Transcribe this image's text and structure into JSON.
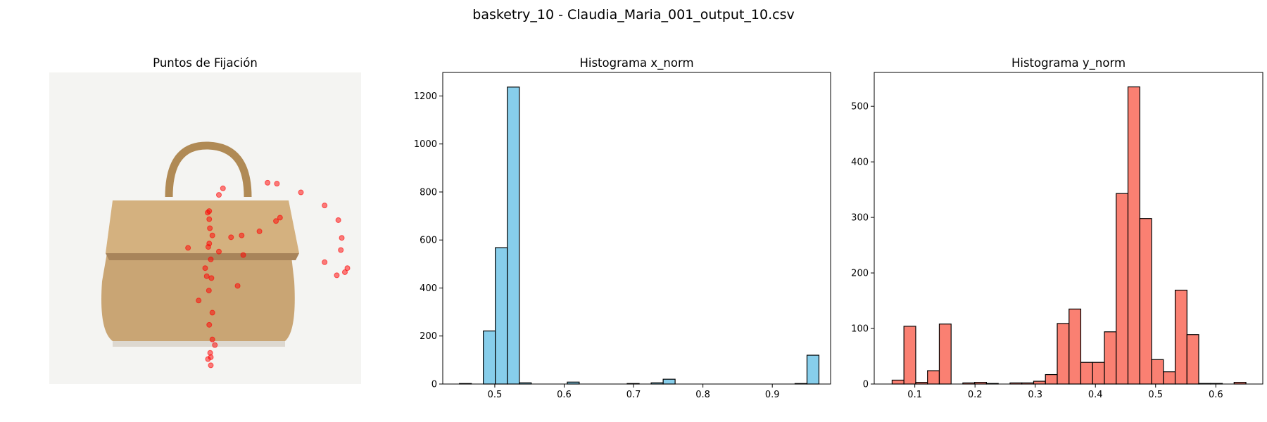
{
  "title": "basketry_10 - Claudia_Maria_001_output_10.csv",
  "chart_data": [
    {
      "type": "scatter",
      "title": "Puntos de Fijación",
      "color": "#ff0000",
      "x": [
        0.513,
        0.513,
        0.513,
        0.508,
        0.518,
        0.5,
        0.523,
        0.513,
        0.523,
        0.531,
        0.518,
        0.518,
        0.523,
        0.479,
        0.505,
        0.544,
        0.7,
        0.73,
        0.807,
        0.883,
        0.927,
        0.938,
        0.935,
        0.956,
        0.948,
        0.922,
        0.883,
        0.74,
        0.727,
        0.674,
        0.617,
        0.583,
        0.604,
        0.445,
        0.557,
        0.544,
        0.622,
        0.515,
        0.51,
        0.52,
        0.512,
        0.516,
        0.509
      ],
      "y": [
        0.445,
        0.471,
        0.549,
        0.45,
        0.6,
        0.628,
        0.523,
        0.81,
        0.771,
        0.875,
        0.914,
        0.94,
        0.857,
        0.732,
        0.654,
        0.575,
        0.354,
        0.357,
        0.385,
        0.427,
        0.474,
        0.531,
        0.57,
        0.628,
        0.641,
        0.651,
        0.609,
        0.466,
        0.477,
        0.51,
        0.523,
        0.529,
        0.685,
        0.563,
        0.372,
        0.393,
        0.586,
        0.5,
        0.56,
        0.66,
        0.7,
        0.9,
        0.92
      ]
    },
    {
      "type": "histogram",
      "title": "Histograma x_norm",
      "color": "#87ceeb",
      "bins": [
        0.449,
        0.4663,
        0.4835,
        0.5008,
        0.5181,
        0.5354,
        0.5526,
        0.5699,
        0.5872,
        0.6045,
        0.6217,
        0.639,
        0.6563,
        0.6736,
        0.6908,
        0.7081,
        0.7254,
        0.7427,
        0.7599,
        0.7772,
        0.7945,
        0.8118,
        0.829,
        0.8463,
        0.8636,
        0.8809,
        0.8981,
        0.9154,
        0.9327,
        0.95,
        0.9672
      ],
      "values": [
        2,
        0,
        221,
        568,
        1237,
        5,
        0,
        0,
        0,
        8,
        0,
        0,
        0,
        0,
        2,
        0,
        5,
        20,
        0,
        0,
        0,
        0,
        0,
        0,
        0,
        0,
        0,
        0,
        2,
        120
      ],
      "xlim": [
        0.425,
        0.984
      ],
      "ylim": [
        0,
        1298
      ],
      "xticks": [
        0.5,
        0.6,
        0.7,
        0.8,
        0.9
      ],
      "yticks": [
        0,
        200,
        400,
        600,
        800,
        1000,
        1200
      ]
    },
    {
      "type": "histogram",
      "title": "Histograma y_norm",
      "color": "#fa8072",
      "bins": [
        0.0623,
        0.0819,
        0.1015,
        0.1211,
        0.1407,
        0.1603,
        0.1798,
        0.1994,
        0.219,
        0.2386,
        0.2582,
        0.2778,
        0.2974,
        0.317,
        0.3366,
        0.3562,
        0.3757,
        0.3953,
        0.4149,
        0.4345,
        0.4541,
        0.4737,
        0.4933,
        0.5129,
        0.5325,
        0.5521,
        0.5716,
        0.5912,
        0.6108,
        0.6304,
        0.65
      ],
      "values": [
        7,
        104,
        3,
        24,
        108,
        0,
        2,
        3,
        1,
        0,
        2,
        2,
        5,
        17,
        109,
        135,
        39,
        39,
        94,
        343,
        535,
        298,
        44,
        22,
        169,
        89,
        1,
        1,
        0,
        3
      ],
      "xlim": [
        0.0326,
        0.678
      ],
      "ylim": [
        0,
        561
      ],
      "xticks": [
        0.1,
        0.2,
        0.3,
        0.4,
        0.5,
        0.6
      ],
      "yticks": [
        0,
        100,
        200,
        300,
        400,
        500
      ]
    }
  ]
}
